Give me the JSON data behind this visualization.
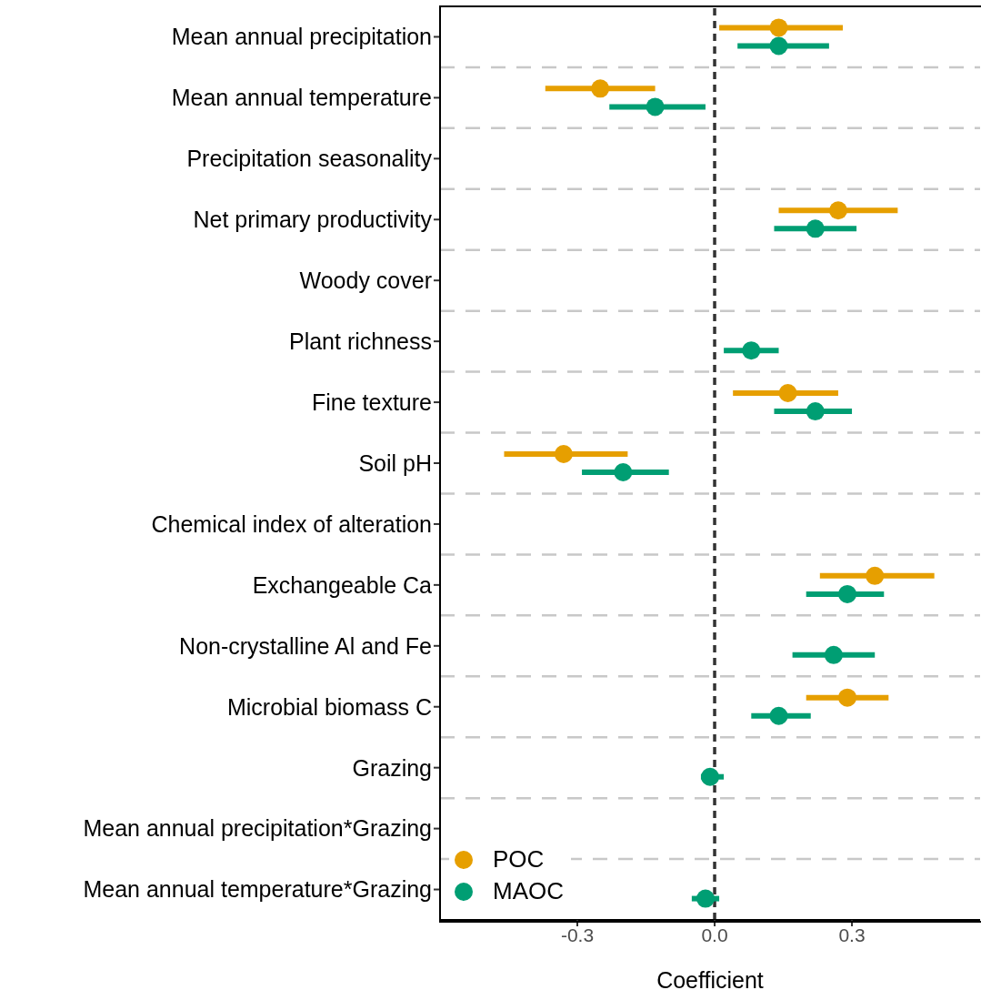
{
  "chart_data": {
    "type": "scatter",
    "orientation": "horizontal",
    "xlabel": "Coefficient",
    "categories": [
      "Mean annual precipitation",
      "Mean annual temperature",
      "Precipitation seasonality",
      "Net primary productivity",
      "Woody cover",
      "Plant richness",
      "Fine texture",
      "Soil pH",
      "Chemical index of alteration",
      "Exchangeable Ca",
      "Non-crystalline Al and Fe",
      "Microbial biomass C",
      "Grazing",
      "Mean annual precipitation*Grazing",
      "Mean annual temperature*Grazing"
    ],
    "series": [
      {
        "name": "POC",
        "color": "#e69f00",
        "values": [
          0.14,
          -0.25,
          null,
          0.27,
          null,
          null,
          0.16,
          -0.33,
          null,
          0.35,
          null,
          0.29,
          null,
          null,
          null
        ],
        "errors": [
          [
            0.01,
            0.28
          ],
          [
            -0.37,
            -0.13
          ],
          null,
          [
            0.14,
            0.4
          ],
          null,
          null,
          [
            0.04,
            0.27
          ],
          [
            -0.46,
            -0.19
          ],
          null,
          [
            0.23,
            0.48
          ],
          null,
          [
            0.2,
            0.38
          ],
          null,
          null,
          null
        ]
      },
      {
        "name": "MAOC",
        "color": "#009e73",
        "values": [
          0.14,
          -0.13,
          null,
          0.22,
          null,
          0.08,
          0.22,
          -0.2,
          null,
          0.29,
          0.26,
          0.14,
          -0.01,
          null,
          -0.02
        ],
        "errors": [
          [
            0.05,
            0.25
          ],
          [
            -0.23,
            -0.02
          ],
          null,
          [
            0.13,
            0.31
          ],
          null,
          [
            0.02,
            0.14
          ],
          [
            0.13,
            0.3
          ],
          [
            -0.29,
            -0.1
          ],
          null,
          [
            0.2,
            0.37
          ],
          [
            0.17,
            0.35
          ],
          [
            0.08,
            0.21
          ],
          [
            -0.03,
            0.02
          ],
          null,
          [
            -0.05,
            0.01
          ]
        ]
      }
    ],
    "xlim": [
      -0.6,
      0.58
    ],
    "xticks": [
      -0.3,
      {
        "value": 0,
        "label": "0.0"
      },
      0.3
    ],
    "ref_lines": [
      {
        "axis": "x",
        "value": 0,
        "color": "#333333",
        "line_style": "dashed"
      }
    ],
    "grid": "y",
    "legend": "bottom left",
    "marker": "circle"
  }
}
